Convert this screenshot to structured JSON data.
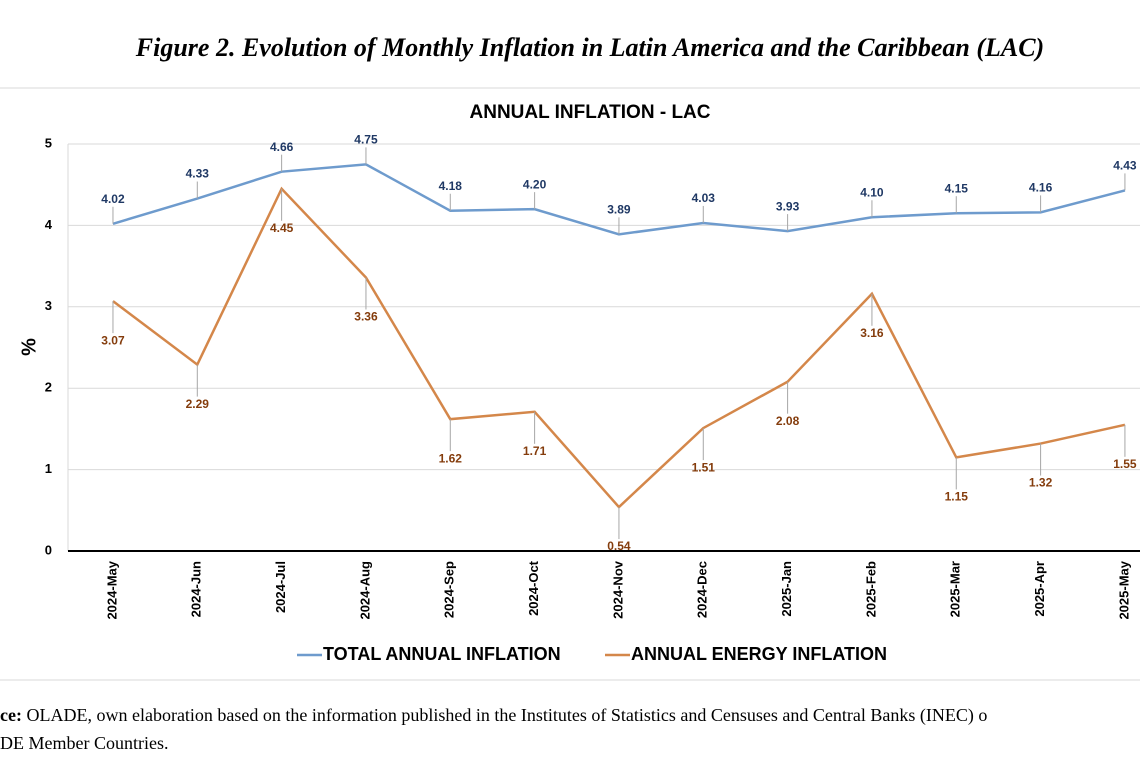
{
  "figure_title": "Figure 2. Evolution of Monthly Inflation in Latin America and the Caribbean (LAC)",
  "chart_data": {
    "type": "line",
    "title": "ANNUAL INFLATION  - LAC",
    "y_label": "%",
    "categories": [
      "2024-May",
      "2024-Jun",
      "2024-Jul",
      "2024-Aug",
      "2024-Sep",
      "2024-Oct",
      "2024-Nov",
      "2024-Dec",
      "2025-Jan",
      "2025-Feb",
      "2025-Mar",
      "2025-Apr",
      "2025-May"
    ],
    "series": [
      {
        "name": "TOTAL ANNUAL INFLATION",
        "color": "#6e9bcd",
        "values": [
          4.02,
          4.33,
          4.66,
          4.75,
          4.18,
          4.2,
          3.89,
          4.03,
          3.93,
          4.1,
          4.15,
          4.16,
          4.43
        ],
        "value_labels": [
          "4.02",
          "4.33",
          "4.66",
          "4.75",
          "4.18",
          "4.20",
          "3.89",
          "4.03",
          "3.93",
          "4.10",
          "4.15",
          "4.16",
          "4.43"
        ]
      },
      {
        "name": "ANNUAL ENERGY INFLATION",
        "color": "#d4874a",
        "values": [
          3.07,
          2.29,
          4.45,
          3.36,
          1.62,
          1.71,
          0.54,
          1.51,
          2.08,
          3.16,
          1.15,
          1.32,
          1.55
        ],
        "value_labels": [
          "3.07",
          "2.29",
          "4.45",
          "3.36",
          "1.62",
          "1.71",
          "0.54",
          "1.51",
          "2.08",
          "3.16",
          "1.15",
          "1.32",
          "1.55"
        ]
      }
    ],
    "ylim": [
      0,
      5
    ],
    "yticks": [
      0,
      1,
      2,
      3,
      4,
      5
    ],
    "grid": true,
    "legend": "bottom"
  },
  "source": {
    "label": "ce:",
    "lines": [
      "OLADE, own elaboration based on the information published in the Institutes of Statistics and Censuses and Central Banks (INEC) o",
      "DE Member Countries."
    ]
  }
}
